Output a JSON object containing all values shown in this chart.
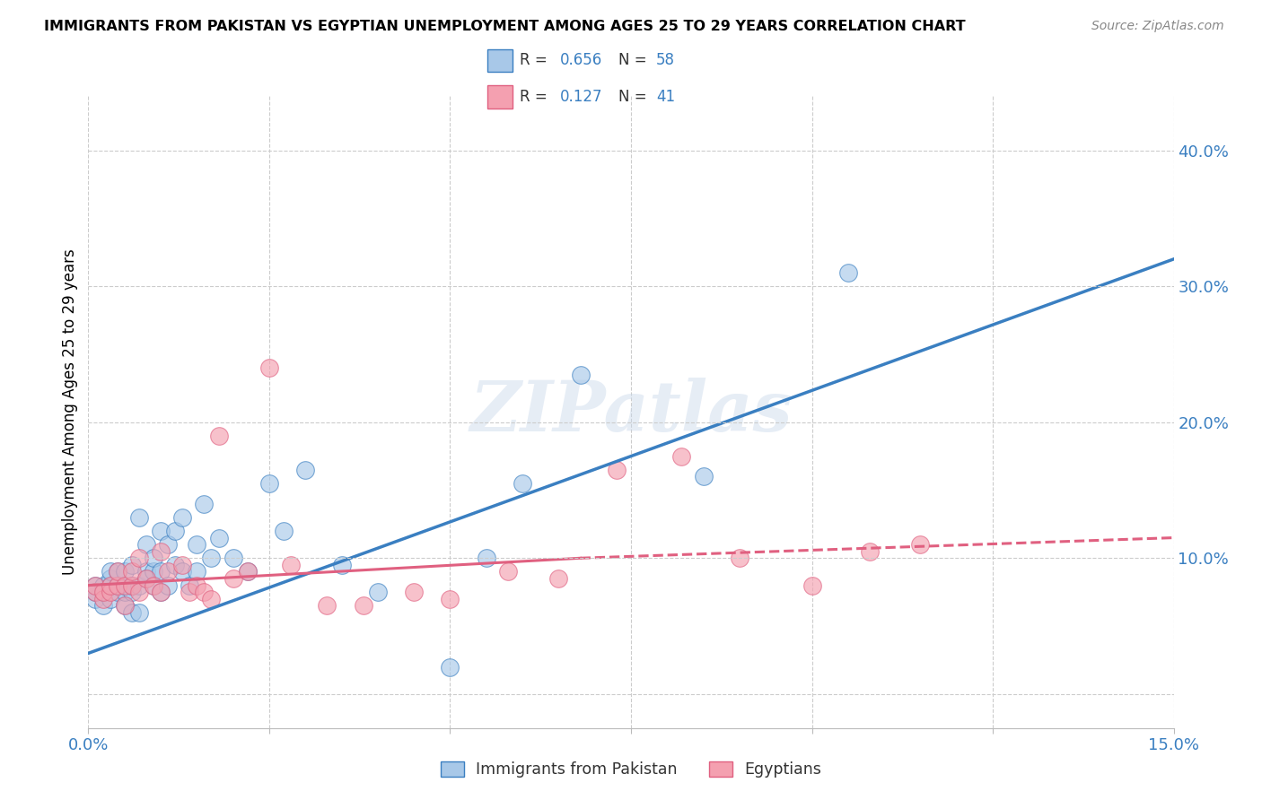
{
  "title": "IMMIGRANTS FROM PAKISTAN VS EGYPTIAN UNEMPLOYMENT AMONG AGES 25 TO 29 YEARS CORRELATION CHART",
  "source": "Source: ZipAtlas.com",
  "ylabel": "Unemployment Among Ages 25 to 29 years",
  "xlim": [
    0.0,
    0.15
  ],
  "ylim": [
    -0.025,
    0.44
  ],
  "xticks": [
    0.0,
    0.025,
    0.05,
    0.075,
    0.1,
    0.125,
    0.15
  ],
  "yticks_right": [
    0.0,
    0.1,
    0.2,
    0.3,
    0.4
  ],
  "ytick_labels_right": [
    "",
    "10.0%",
    "20.0%",
    "30.0%",
    "40.0%"
  ],
  "blue_color": "#a8c8e8",
  "pink_color": "#f4a0b0",
  "line_blue": "#3a7fc1",
  "line_pink": "#e06080",
  "watermark": "ZIPatlas",
  "r1": "0.656",
  "n1": "58",
  "r2": "0.127",
  "n2": "41",
  "pakistan_x": [
    0.001,
    0.001,
    0.001,
    0.002,
    0.002,
    0.002,
    0.003,
    0.003,
    0.003,
    0.003,
    0.004,
    0.004,
    0.004,
    0.005,
    0.005,
    0.005,
    0.005,
    0.006,
    0.006,
    0.006,
    0.006,
    0.007,
    0.007,
    0.007,
    0.008,
    0.008,
    0.008,
    0.009,
    0.009,
    0.009,
    0.01,
    0.01,
    0.01,
    0.011,
    0.011,
    0.012,
    0.012,
    0.013,
    0.013,
    0.014,
    0.015,
    0.015,
    0.016,
    0.017,
    0.018,
    0.02,
    0.022,
    0.025,
    0.027,
    0.03,
    0.035,
    0.04,
    0.05,
    0.055,
    0.06,
    0.068,
    0.085,
    0.105
  ],
  "pakistan_y": [
    0.07,
    0.08,
    0.075,
    0.065,
    0.08,
    0.075,
    0.07,
    0.085,
    0.08,
    0.09,
    0.075,
    0.08,
    0.09,
    0.065,
    0.075,
    0.08,
    0.09,
    0.06,
    0.075,
    0.08,
    0.095,
    0.06,
    0.08,
    0.13,
    0.09,
    0.085,
    0.11,
    0.08,
    0.09,
    0.1,
    0.075,
    0.09,
    0.12,
    0.08,
    0.11,
    0.095,
    0.12,
    0.09,
    0.13,
    0.08,
    0.09,
    0.11,
    0.14,
    0.1,
    0.115,
    0.1,
    0.09,
    0.155,
    0.12,
    0.165,
    0.095,
    0.075,
    0.02,
    0.1,
    0.155,
    0.235,
    0.16,
    0.31
  ],
  "egypt_x": [
    0.001,
    0.001,
    0.002,
    0.002,
    0.003,
    0.003,
    0.004,
    0.004,
    0.005,
    0.005,
    0.006,
    0.006,
    0.007,
    0.007,
    0.008,
    0.009,
    0.01,
    0.01,
    0.011,
    0.013,
    0.014,
    0.015,
    0.016,
    0.017,
    0.018,
    0.02,
    0.022,
    0.025,
    0.028,
    0.033,
    0.038,
    0.045,
    0.05,
    0.058,
    0.065,
    0.073,
    0.082,
    0.09,
    0.1,
    0.108,
    0.115
  ],
  "egypt_y": [
    0.075,
    0.08,
    0.07,
    0.075,
    0.075,
    0.08,
    0.08,
    0.09,
    0.065,
    0.08,
    0.08,
    0.09,
    0.075,
    0.1,
    0.085,
    0.08,
    0.075,
    0.105,
    0.09,
    0.095,
    0.075,
    0.08,
    0.075,
    0.07,
    0.19,
    0.085,
    0.09,
    0.24,
    0.095,
    0.065,
    0.065,
    0.075,
    0.07,
    0.09,
    0.085,
    0.165,
    0.175,
    0.1,
    0.08,
    0.105,
    0.11
  ],
  "blue_trend": [
    0.0,
    0.15,
    0.03,
    0.32
  ],
  "pink_solid": [
    0.0,
    0.068,
    0.08,
    0.1
  ],
  "pink_dashed": [
    0.068,
    0.15,
    0.1,
    0.115
  ]
}
